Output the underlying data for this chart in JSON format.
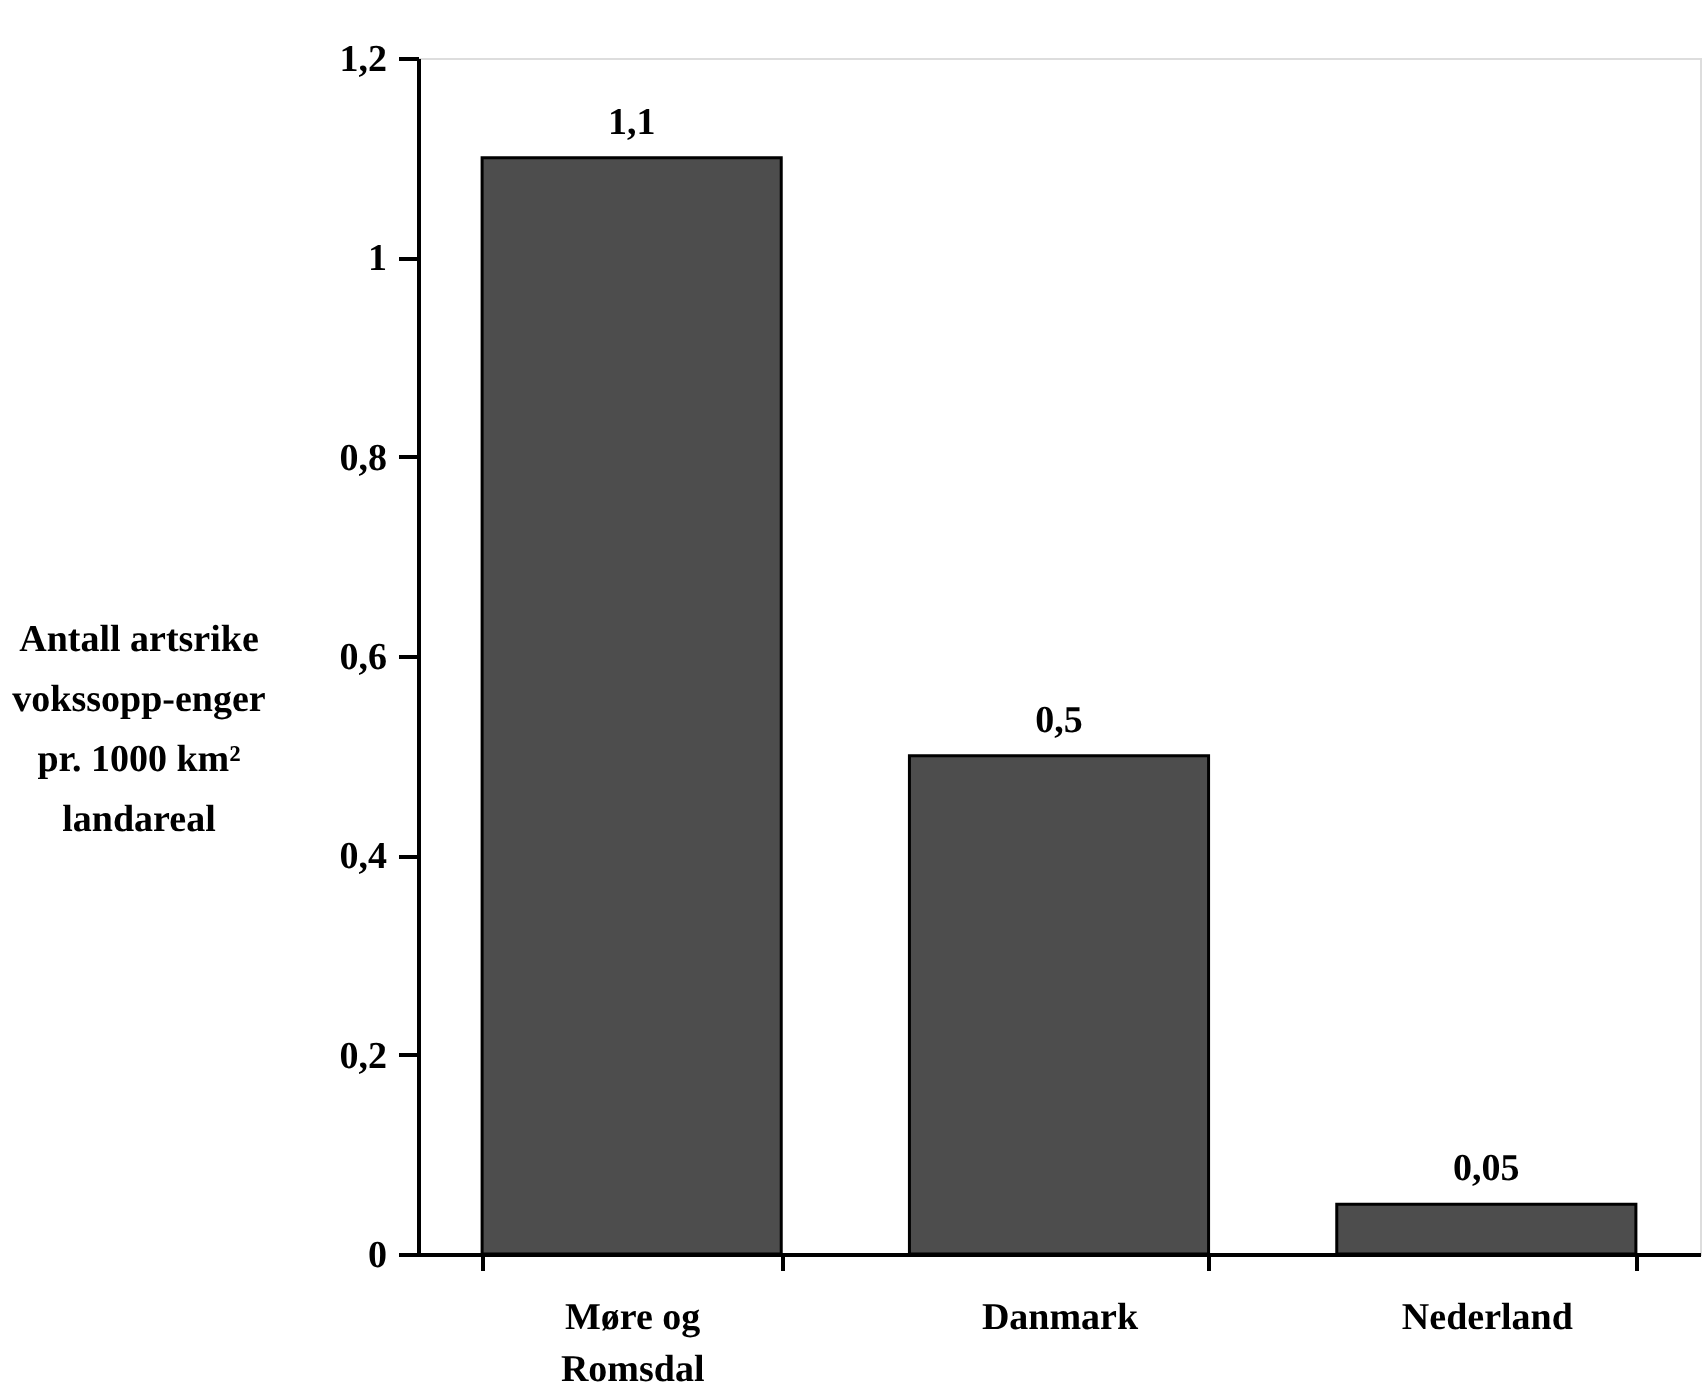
{
  "chart_data": {
    "type": "bar",
    "ylabel": "Antall artsrike\nvokssopp-enger\npr. 1000 km²\nlandareal",
    "categories": [
      "Møre og Romsdal",
      "Danmark",
      "Nederland"
    ],
    "values": [
      1.1,
      0.5,
      0.05
    ],
    "color": "#4d4d4d",
    "value_labels": [
      "1,1",
      "0,5",
      "0,05"
    ],
    "ylim": [
      0,
      1.2
    ],
    "yticks": [
      0,
      {
        "value": 0.2,
        "label": "0,2"
      },
      {
        "value": 0.4,
        "label": "0,4"
      },
      {
        "value": 0.6,
        "label": "0,6"
      },
      {
        "value": 0.8,
        "label": "0,8"
      },
      1,
      {
        "value": 1.2,
        "label": "1,2"
      }
    ],
    "grid": false
  }
}
